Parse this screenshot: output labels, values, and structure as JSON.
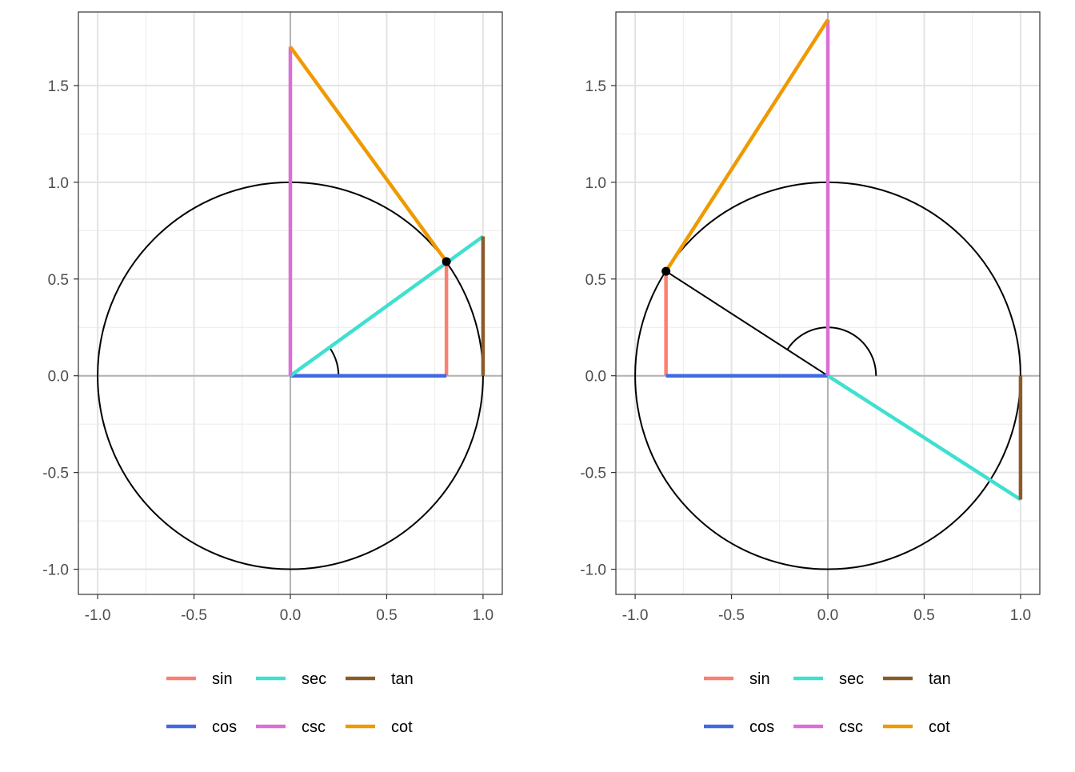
{
  "chart_data": [
    {
      "type": "line",
      "title": "",
      "xlabel": "",
      "ylabel": "",
      "xlim": [
        -1.1,
        1.1
      ],
      "ylim": [
        -1.13,
        1.88
      ],
      "xticks": [
        -1.0,
        -0.5,
        0.0,
        0.5,
        1.0
      ],
      "xtick_labels": [
        "-1.0",
        "-0.5",
        "0.0",
        "0.5",
        "1.0"
      ],
      "yticks": [
        -1.0,
        -0.5,
        0.0,
        0.5,
        1.0,
        1.5
      ],
      "ytick_labels": [
        "-1.0",
        "-0.5",
        "0.0",
        "0.5",
        "1.0",
        "1.5"
      ],
      "grid": true,
      "unit_circle": true,
      "point": [
        0.81,
        0.59
      ],
      "angle_arc": {
        "radius": 0.25,
        "start_deg": 0,
        "end_deg": 36
      },
      "radius_line": null,
      "segments": [
        {
          "name": "sin",
          "color": "#FA8072",
          "x": [
            0.81,
            0.81
          ],
          "y": [
            0.0,
            0.59
          ]
        },
        {
          "name": "cos",
          "color": "#4169E1",
          "x": [
            0.0,
            0.81
          ],
          "y": [
            0.0,
            0.0
          ]
        },
        {
          "name": "sec",
          "color": "#40E0D0",
          "x": [
            0.0,
            1.0
          ],
          "y": [
            0.0,
            0.72
          ]
        },
        {
          "name": "csc",
          "color": "#DA70D6",
          "x": [
            0.0,
            0.0
          ],
          "y": [
            0.0,
            1.7
          ]
        },
        {
          "name": "tan",
          "color": "#8B5A2B",
          "x": [
            1.0,
            1.0
          ],
          "y": [
            0.0,
            0.72
          ]
        },
        {
          "name": "cot",
          "color": "#EE9A00",
          "x": [
            0.0,
            0.81
          ],
          "y": [
            1.7,
            0.59
          ]
        }
      ],
      "legend": {
        "placement": "bottom",
        "rows": [
          [
            "sin",
            "sec",
            "tan"
          ],
          [
            "cos",
            "csc",
            "cot"
          ]
        ]
      }
    },
    {
      "type": "line",
      "title": "",
      "xlabel": "",
      "ylabel": "",
      "xlim": [
        -1.1,
        1.1
      ],
      "ylim": [
        -1.13,
        1.88
      ],
      "xticks": [
        -1.0,
        -0.5,
        0.0,
        0.5,
        1.0
      ],
      "xtick_labels": [
        "-1.0",
        "-0.5",
        "0.0",
        "0.5",
        "1.0"
      ],
      "yticks": [
        -1.0,
        -0.5,
        0.0,
        0.5,
        1.0,
        1.5
      ],
      "ytick_labels": [
        "-1.0",
        "-0.5",
        "0.0",
        "0.5",
        "1.0",
        "1.5"
      ],
      "grid": true,
      "unit_circle": true,
      "point": [
        -0.84,
        0.54
      ],
      "angle_arc": {
        "radius": 0.25,
        "start_deg": 0,
        "end_deg": 147
      },
      "radius_line": {
        "x": [
          0.0,
          -0.84
        ],
        "y": [
          0.0,
          0.54
        ]
      },
      "segments": [
        {
          "name": "sin",
          "color": "#FA8072",
          "x": [
            -0.84,
            -0.84
          ],
          "y": [
            0.0,
            0.54
          ]
        },
        {
          "name": "cos",
          "color": "#4169E1",
          "x": [
            0.0,
            -0.84
          ],
          "y": [
            0.0,
            0.0
          ]
        },
        {
          "name": "sec",
          "color": "#40E0D0",
          "x": [
            0.0,
            1.0
          ],
          "y": [
            0.0,
            -0.64
          ]
        },
        {
          "name": "csc",
          "color": "#DA70D6",
          "x": [
            0.0,
            0.0
          ],
          "y": [
            0.0,
            1.84
          ]
        },
        {
          "name": "tan",
          "color": "#8B5A2B",
          "x": [
            1.0,
            1.0
          ],
          "y": [
            0.0,
            -0.64
          ]
        },
        {
          "name": "cot",
          "color": "#EE9A00",
          "x": [
            0.0,
            -0.84
          ],
          "y": [
            1.84,
            0.54
          ]
        }
      ],
      "legend": {
        "placement": "bottom",
        "rows": [
          [
            "sin",
            "sec",
            "tan"
          ],
          [
            "cos",
            "csc",
            "cot"
          ]
        ]
      }
    }
  ]
}
